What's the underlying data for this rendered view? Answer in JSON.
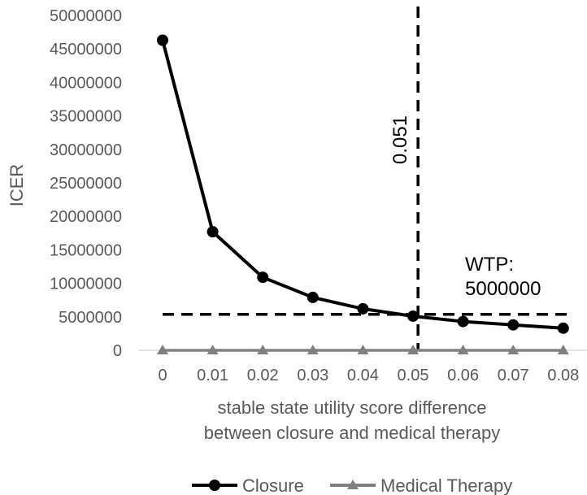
{
  "chart_data": {
    "type": "line",
    "xlabel_lines": [
      "stable state utility score difference",
      "between closure and medical therapy"
    ],
    "ylabel": "ICER",
    "x": [
      0,
      0.01,
      0.02,
      0.03,
      0.04,
      0.05,
      0.06,
      0.07,
      0.08
    ],
    "x_tick_labels": [
      "0",
      "0.01",
      "0.02",
      "0.03",
      "0.04",
      "0.05",
      "0.06",
      "0.07",
      "0.08"
    ],
    "ylim": [
      0,
      50000000
    ],
    "y_ticks": [
      0,
      5000000,
      10000000,
      15000000,
      20000000,
      25000000,
      30000000,
      35000000,
      40000000,
      45000000,
      50000000
    ],
    "y_tick_labels": [
      "0",
      "5000000",
      "10000000",
      "15000000",
      "20000000",
      "25000000",
      "30000000",
      "35000000",
      "40000000",
      "45000000",
      "50000000"
    ],
    "series": [
      {
        "name": "Closure",
        "color": "#000000",
        "marker": "circle",
        "values": [
          46300000,
          17700000,
          10900000,
          7900000,
          6200000,
          5100000,
          4300000,
          3800000,
          3300000
        ]
      },
      {
        "name": "Medical Therapy",
        "color": "#808080",
        "marker": "triangle",
        "values": [
          0,
          0,
          0,
          0,
          0,
          0,
          0,
          0,
          0
        ]
      }
    ],
    "reference_lines": {
      "vertical": {
        "x": 0.051,
        "label": "0.051"
      },
      "horizontal": {
        "y": 5000000,
        "label_line1": "WTP:",
        "label_line2": "5000000"
      }
    },
    "legend_position": "bottom",
    "grid": false
  }
}
